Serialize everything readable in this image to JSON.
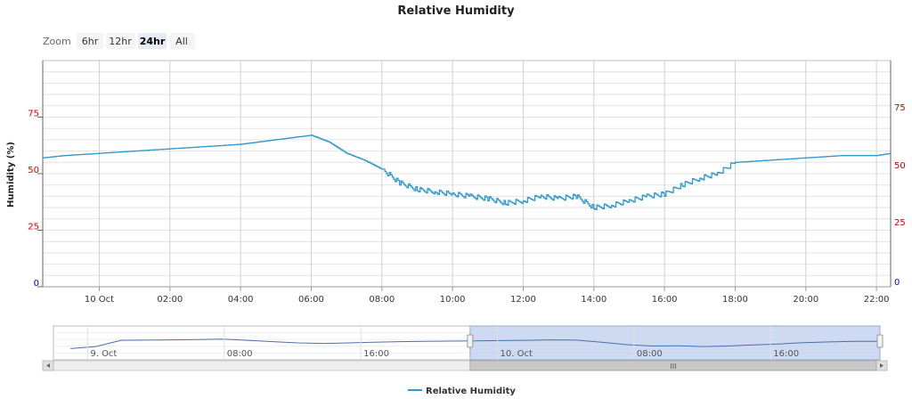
{
  "chart_data": {
    "type": "line",
    "title": "Relative Humidity",
    "ylabel": "Humidity (%)",
    "ylim": [
      0,
      100
    ],
    "y_ticks": [
      0,
      25,
      50,
      75
    ],
    "y_ticks_right": [
      25,
      50,
      75
    ],
    "x_tick_labels": [
      "10 Oct",
      "02:00",
      "04:00",
      "06:00",
      "08:00",
      "10:00",
      "12:00",
      "14:00",
      "16:00",
      "18:00",
      "20:00",
      "22:00"
    ],
    "x_range_hours": [
      22.4,
      46.4
    ],
    "grid": true,
    "legend_position": "bottom-center",
    "colors": {
      "line": "#3399cc",
      "grid": "#e2e2e2",
      "axis_left": "#cc0000",
      "axis_zero": "#0000cc",
      "navigator_fill": "#c6d4f0"
    },
    "series": [
      {
        "name": "Relative Humidity",
        "x_hours": [
          22.4,
          23.0,
          24.0,
          25.0,
          26.0,
          27.0,
          28.0,
          28.5,
          29.0,
          29.5,
          30.0,
          30.5,
          31.0,
          31.5,
          32.0,
          32.5,
          33.0,
          33.5,
          34.0,
          34.5,
          35.0,
          35.5,
          36.0,
          36.5,
          37.0,
          37.5,
          38.0,
          38.5,
          39.0,
          39.5,
          40.0,
          40.5,
          41.0,
          41.5,
          42.0,
          43.0,
          44.0,
          45.0,
          46.0,
          46.4
        ],
        "values": [
          57,
          58,
          59,
          60,
          61,
          62,
          63,
          64,
          65,
          66,
          67,
          64,
          59,
          56,
          52,
          46,
          43,
          42,
          41,
          40,
          39,
          37,
          38,
          40,
          39,
          40,
          35,
          36,
          38,
          40,
          41,
          45,
          48,
          50,
          55,
          56,
          57,
          58,
          58,
          59
        ]
      }
    ]
  },
  "zoom": {
    "label": "Zoom",
    "buttons": [
      {
        "label": "6hr",
        "active": false
      },
      {
        "label": "12hr",
        "active": false
      },
      {
        "label": "24hr",
        "active": true
      },
      {
        "label": "All",
        "active": false
      }
    ]
  },
  "navigator": {
    "labels": [
      "9. Oct",
      "08:00",
      "16:00",
      "10. Oct",
      "08:00",
      "16:00"
    ],
    "label_hours": [
      0,
      8,
      16,
      24,
      32,
      40
    ],
    "range_hours": [
      -2,
      46.4
    ],
    "selected_hours": [
      22.4,
      46.4
    ],
    "series_values": [
      30,
      38,
      62,
      63,
      64,
      65,
      67,
      62,
      57,
      52,
      50,
      52,
      55,
      57,
      58,
      59,
      60,
      61,
      62,
      64,
      63,
      55,
      45,
      40,
      41,
      38,
      40,
      44,
      48,
      53,
      56,
      58,
      58
    ],
    "scrollbar_grip": "III"
  }
}
